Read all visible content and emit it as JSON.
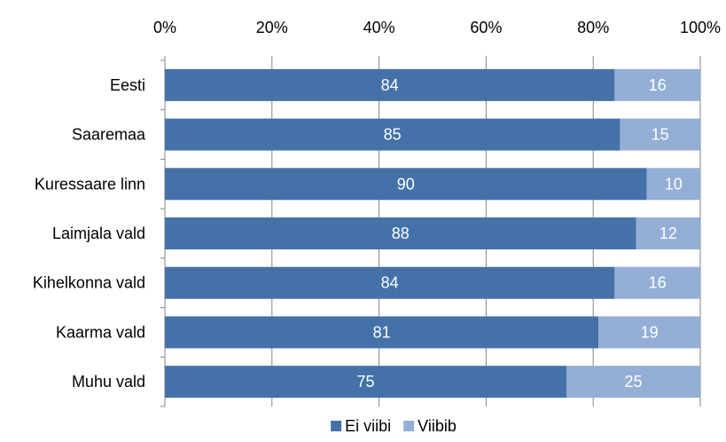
{
  "chart_data": {
    "type": "bar",
    "orientation": "horizontal",
    "stacked": true,
    "percent_scale": true,
    "categories": [
      "Eesti",
      "Saaremaa",
      "Kuressaare linn",
      "Laimjala vald",
      "Kihelkonna vald",
      "Kaarma vald",
      "Muhu vald"
    ],
    "series": [
      {
        "name": "Ei viibi",
        "color": "#4472A8",
        "values": [
          84,
          85,
          90,
          88,
          84,
          81,
          75
        ]
      },
      {
        "name": "Viibib",
        "color": "#94AED6",
        "values": [
          16,
          15,
          10,
          12,
          16,
          19,
          25
        ]
      }
    ],
    "x_ticks": [
      "0%",
      "20%",
      "40%",
      "60%",
      "80%",
      "100%"
    ],
    "xlim": [
      0,
      100
    ],
    "x_axis_position": "top",
    "grid": true,
    "legend": "bottom",
    "title": "",
    "xlabel": "",
    "ylabel": ""
  }
}
